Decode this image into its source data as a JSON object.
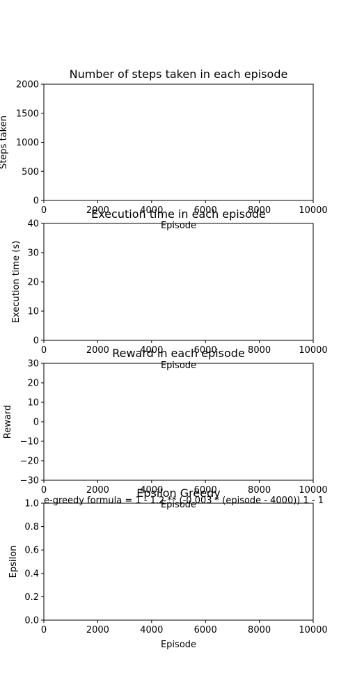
{
  "chart_data": [
    {
      "type": "line",
      "title": "Number of steps taken in each episode",
      "xlabel": "Episode",
      "ylabel": "Steps taken",
      "xlim": [
        0,
        10000
      ],
      "ylim": [
        0,
        2200
      ],
      "xticks": [
        "0",
        "2000",
        "4000",
        "6000",
        "8000",
        "10000"
      ],
      "yticks": [
        "0",
        "500",
        "1000",
        "1500",
        "2000"
      ],
      "series": [],
      "grid": false
    },
    {
      "type": "line",
      "title": "Execution time in each episode",
      "xlabel": "Episode",
      "ylabel": "Execution time (s)",
      "xlim": [
        0,
        10000
      ],
      "ylim": [
        0,
        40
      ],
      "xticks": [
        "0",
        "2000",
        "4000",
        "6000",
        "8000",
        "10000"
      ],
      "yticks": [
        "0",
        "10",
        "20",
        "30",
        "40"
      ],
      "series": [],
      "grid": false
    },
    {
      "type": "line",
      "title": "Reward in each episode",
      "xlabel": "Episode",
      "ylabel": "Reward",
      "xlim": [
        0,
        10000
      ],
      "ylim": [
        -30,
        30
      ],
      "xticks": [
        "0",
        "2000",
        "4000",
        "6000",
        "8000",
        "10000"
      ],
      "yticks": [
        "−30",
        "−20",
        "−10",
        "0",
        "10",
        "20",
        "30"
      ],
      "series": [],
      "grid": false
    },
    {
      "type": "line",
      "title": "Epsilon Greedy",
      "xlabel": "Episode",
      "ylabel": "Epsilon",
      "xlim": [
        0,
        10000
      ],
      "ylim": [
        0,
        1
      ],
      "xticks": [
        "0",
        "2000",
        "4000",
        "6000",
        "8000",
        "10000"
      ],
      "yticks": [
        "0.0",
        "0.2",
        "0.4",
        "0.6",
        "0.8",
        "1.0"
      ],
      "annotation": "e-greedy formula =  1 - 1.2 ** (-0.003 * (episode - 4000))  1 - 1",
      "series": [],
      "grid": false
    }
  ]
}
